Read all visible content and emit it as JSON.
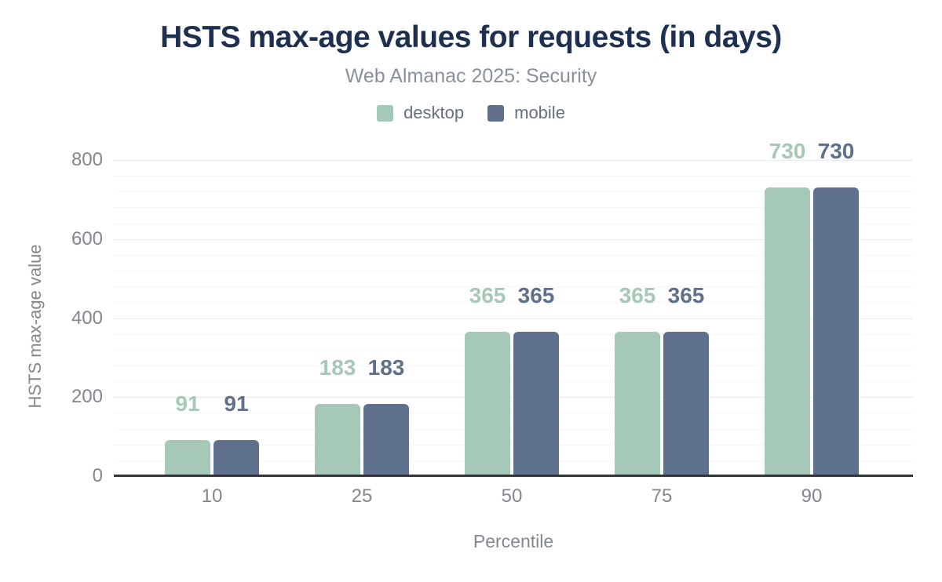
{
  "colors": {
    "title": "#1e3050",
    "subtitle": "#8a909b",
    "legend_text": "#676e79",
    "axis_text": "#82878f",
    "axis_line": "#333538",
    "grid_major": "#e7e9eb",
    "grid_minor": "#f5f6f7",
    "background": "#ffffff",
    "desktop": "#a5c8b7",
    "mobile": "#5f708c"
  },
  "chart_data": {
    "type": "bar",
    "title": "HSTS max-age values for requests (in days)",
    "subtitle": "Web Almanac 2025: Security",
    "xlabel": "Percentile",
    "ylabel": "HSTS max-age value",
    "categories": [
      "10",
      "25",
      "50",
      "75",
      "90"
    ],
    "series": [
      {
        "name": "desktop",
        "color": "#a5c8b7",
        "values": [
          91,
          183,
          365,
          365,
          730
        ]
      },
      {
        "name": "mobile",
        "color": "#5f708c",
        "values": [
          91,
          183,
          365,
          365,
          730
        ]
      }
    ],
    "ylim": [
      0,
      800
    ],
    "yticks": [
      0,
      200,
      400,
      600,
      800
    ],
    "grid": "horizontal",
    "grid_minor_step": 40,
    "grid_major_step": 200,
    "legend_position": "top-center",
    "data_labels": true
  }
}
